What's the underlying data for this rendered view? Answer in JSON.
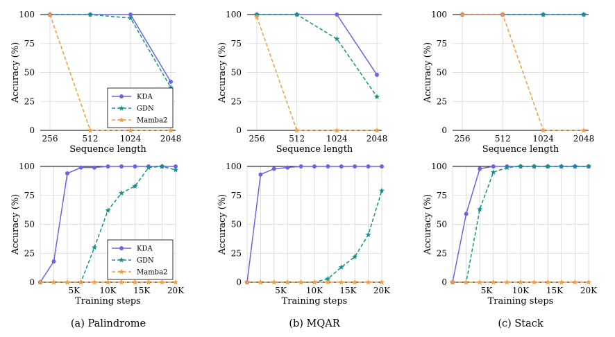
{
  "colors": {
    "KDA": "#6a63e8",
    "GDN": "#12908a",
    "Mamba2": "#f39a3c"
  },
  "legend": [
    {
      "name": "KDA",
      "marker": "circle",
      "dash": "solid"
    },
    {
      "name": "GDN",
      "marker": "star",
      "dash": "dashed"
    },
    {
      "name": "Mamba2",
      "marker": "star",
      "dash": "dashed"
    }
  ],
  "captions": [
    "(a) Palindrome",
    "(b) MQAR",
    "(c) Stack"
  ],
  "chart_data": [
    {
      "type": "line",
      "panel": "top-left",
      "xlabel": "Sequence length",
      "ylabel": "Accuracy (%)",
      "x": [
        256,
        512,
        1024,
        2048
      ],
      "x_scale": "categorical",
      "xticks": [
        "256",
        "512",
        "1024",
        "2048"
      ],
      "ylim": [
        0,
        100
      ],
      "yticks": [
        0,
        25,
        50,
        75,
        100
      ],
      "grid": true,
      "legend_position": "bottom-right",
      "series": [
        {
          "name": "KDA",
          "values": [
            100,
            100,
            100,
            42
          ]
        },
        {
          "name": "GDN",
          "values": [
            100,
            100,
            97,
            37
          ]
        },
        {
          "name": "Mamba2",
          "values": [
            100,
            0,
            0,
            0
          ]
        }
      ]
    },
    {
      "type": "line",
      "panel": "top-middle",
      "xlabel": "Sequence length",
      "ylabel": "Accuracy (%)",
      "x": [
        256,
        512,
        1024,
        2048
      ],
      "x_scale": "categorical",
      "xticks": [
        "256",
        "512",
        "1024",
        "2048"
      ],
      "ylim": [
        0,
        100
      ],
      "yticks": [
        0,
        25,
        50,
        75,
        100
      ],
      "grid": true,
      "series": [
        {
          "name": "KDA",
          "values": [
            100,
            100,
            100,
            48
          ]
        },
        {
          "name": "GDN",
          "values": [
            100,
            100,
            79,
            29
          ]
        },
        {
          "name": "Mamba2",
          "values": [
            98,
            0,
            0,
            0
          ]
        }
      ]
    },
    {
      "type": "line",
      "panel": "top-right",
      "xlabel": "Sequence length",
      "ylabel": "Accuracy (%)",
      "x": [
        256,
        512,
        1024,
        2048
      ],
      "x_scale": "categorical",
      "xticks": [
        "256",
        "512",
        "1024",
        "2048"
      ],
      "ylim": [
        0,
        100
      ],
      "yticks": [
        0,
        25,
        50,
        75,
        100
      ],
      "grid": true,
      "series": [
        {
          "name": "KDA",
          "values": [
            100,
            100,
            100,
            100
          ]
        },
        {
          "name": "GDN",
          "values": [
            100,
            100,
            100,
            100
          ]
        },
        {
          "name": "Mamba2",
          "values": [
            100,
            100,
            0,
            0
          ]
        }
      ]
    },
    {
      "type": "line",
      "panel": "bottom-left",
      "xlabel": "Training steps",
      "ylabel": "Accuracy (%)",
      "x": [
        0,
        2000,
        4000,
        6000,
        8000,
        10000,
        12000,
        14000,
        16000,
        18000,
        20000
      ],
      "x_scale": "linear",
      "xlim": [
        0,
        20000
      ],
      "xticks": [
        5000,
        10000,
        15000,
        20000
      ],
      "xtick_labels": [
        "5K",
        "10K",
        "15K",
        "20K"
      ],
      "ylim": [
        0,
        100
      ],
      "yticks": [
        0,
        25,
        50,
        75,
        100
      ],
      "grid": true,
      "legend_position": "bottom-right",
      "series": [
        {
          "name": "KDA",
          "values": [
            0,
            18,
            94,
            99,
            99,
            100,
            100,
            100,
            100,
            100,
            100
          ]
        },
        {
          "name": "GDN",
          "values": [
            0,
            0,
            0,
            0,
            30,
            62,
            77,
            83,
            99,
            100,
            97
          ]
        },
        {
          "name": "Mamba2",
          "values": [
            0,
            0,
            0,
            0,
            0,
            0,
            0,
            0,
            0,
            0,
            0
          ]
        }
      ]
    },
    {
      "type": "line",
      "panel": "bottom-middle",
      "xlabel": "Training steps",
      "ylabel": "Accuracy (%)",
      "x": [
        0,
        2000,
        4000,
        6000,
        8000,
        10000,
        12000,
        14000,
        16000,
        18000,
        20000
      ],
      "x_scale": "linear",
      "xlim": [
        0,
        20000
      ],
      "xticks": [
        5000,
        10000,
        15000,
        20000
      ],
      "xtick_labels": [
        "5K",
        "10K",
        "15K",
        "20K"
      ],
      "ylim": [
        0,
        100
      ],
      "yticks": [
        0,
        25,
        50,
        75,
        100
      ],
      "grid": true,
      "series": [
        {
          "name": "KDA",
          "values": [
            0,
            93,
            98,
            99,
            100,
            100,
            100,
            100,
            100,
            100,
            100
          ]
        },
        {
          "name": "GDN",
          "values": [
            0,
            0,
            0,
            0,
            0,
            0,
            3,
            13,
            22,
            41,
            79
          ]
        },
        {
          "name": "Mamba2",
          "values": [
            0,
            0,
            0,
            0,
            0,
            0,
            0,
            0,
            0,
            0,
            0
          ]
        }
      ]
    },
    {
      "type": "line",
      "panel": "bottom-right",
      "xlabel": "Training steps",
      "ylabel": "Accuracy (%)",
      "x": [
        0,
        2000,
        4000,
        6000,
        8000,
        10000,
        12000,
        14000,
        16000,
        18000,
        20000
      ],
      "x_scale": "linear",
      "xlim": [
        0,
        20000
      ],
      "xticks": [
        5000,
        10000,
        15000,
        20000
      ],
      "xtick_labels": [
        "5K",
        "10K",
        "15K",
        "20K"
      ],
      "ylim": [
        0,
        100
      ],
      "yticks": [
        0,
        25,
        50,
        75,
        100
      ],
      "grid": true,
      "series": [
        {
          "name": "KDA",
          "values": [
            0,
            59,
            98,
            100,
            100,
            100,
            100,
            100,
            100,
            100,
            100
          ]
        },
        {
          "name": "GDN",
          "values": [
            0,
            0,
            63,
            95,
            99,
            100,
            100,
            100,
            100,
            100,
            100
          ]
        },
        {
          "name": "Mamba2",
          "values": [
            0,
            0,
            0,
            0,
            0,
            0,
            0,
            0,
            0,
            0,
            0
          ]
        }
      ]
    }
  ]
}
